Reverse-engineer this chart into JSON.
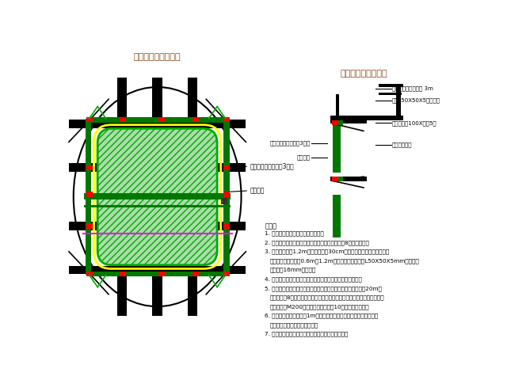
{
  "bg_color": "#ffffff",
  "title_left": "作业平台平面示意图",
  "title_right": "作业平台断面示意图",
  "notes_title": "说明：",
  "notes": [
    "1. 图中标注的数据均以毫米单位计。",
    "2. 搭身成工作业平台采用三角形中握支架，压衬为8时槽钢制作。",
    "3. 支架外侧设置1.2m高防护栏杆和30cm高踢脚板，双排防护栏杆设用圆管老，高度分别为0.6m和1.2m。栏杆压材为：立柱L50X50X5mm角钢，圆老用直径16mm的圆钢。",
    "4. 单个中握支架的各个构件及护栏立柱均采用闭路连接力丸。",
    "5. 中握支架与搭身模板的连接力式，支架水平构件模板端预留有20m长直角弯头（8时槽钢），直接插入模板顶反水平管带内侧，斜杆在放道模板端端过用距M200高压螺栓与模板面向10时槽钢的动连接。",
    "6. 支架竣缝间距应不大于1m。双排扣手既采用横档，既的间端与支架连接车固，严禁有挑头既现象。",
    "7. 防护栏杆内侧及作业平台底部出挡板板成防护用。"
  ],
  "left_label1": "护栏装置（见说明第3段）",
  "left_label2": "中握主架",
  "right_label1": "防护装置尺寸见说明 3m",
  "right_label2": "角钢L50X50X5护栏主架",
  "right_label3": "中握主架（100X对钢5）",
  "right_label4": "出脚防护护栏"
}
